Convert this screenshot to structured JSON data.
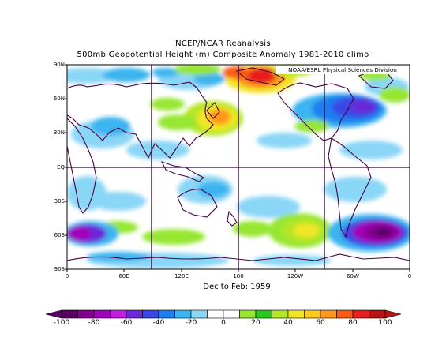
{
  "title": {
    "line1": "NCEP/NCAR Reanalysis",
    "line2": "500mb Geopotential Height (m) Composite Anomaly 1981-2010 climo"
  },
  "credit": "NOAA/ESRL Physical Sciences Division",
  "period": "Dec to Feb: 1959",
  "map": {
    "lat_labels": [
      "90N",
      "60N",
      "30N",
      "EQ",
      "30S",
      "60S",
      "90S"
    ],
    "lon_labels": [
      "0",
      "60E",
      "120E",
      "180",
      "120W",
      "60W",
      "0"
    ],
    "projection": "cylindrical equidistant",
    "lon_range": [
      0,
      360
    ],
    "lat_range": [
      -90,
      90
    ]
  },
  "colorbar": {
    "labels": [
      "-100",
      "-80",
      "-60",
      "-40",
      "-20",
      "0",
      "20",
      "40",
      "60",
      "80",
      "100"
    ],
    "colors": [
      "#5a0060",
      "#80008c",
      "#a000b8",
      "#c21ee0",
      "#6a28d8",
      "#3a46e6",
      "#1e7ef0",
      "#3ab4f0",
      "#8ad6f6",
      "#ffffff",
      "#ffffff",
      "#96e632",
      "#28c81e",
      "#b4e628",
      "#f0e628",
      "#ffc81e",
      "#ff961e",
      "#fa5a14",
      "#e61e1e",
      "#b41414"
    ],
    "min": -100,
    "max": 100,
    "step": 10
  }
}
